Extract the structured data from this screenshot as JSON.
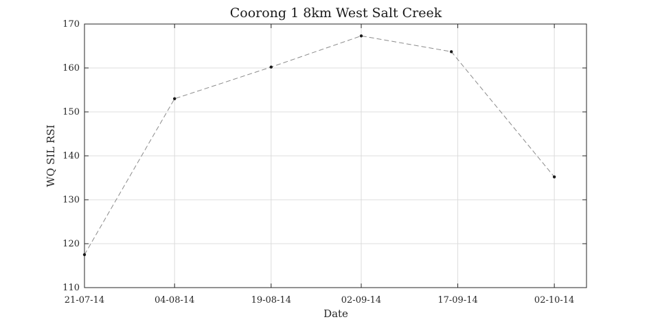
{
  "chart_data": {
    "type": "line",
    "title": "Coorong 1 8km West Salt Creek",
    "xlabel": "Date",
    "ylabel": "WQ SIL RSI",
    "xlim": [
      "2014-07-21",
      "2014-10-07"
    ],
    "ylim": [
      110,
      170
    ],
    "x_ticks": [
      "21-07-14",
      "04-08-14",
      "19-08-14",
      "02-09-14",
      "17-09-14",
      "02-10-14"
    ],
    "x_tick_dates": [
      "2014-07-21",
      "2014-08-04",
      "2014-08-19",
      "2014-09-02",
      "2014-09-17",
      "2014-10-02"
    ],
    "y_ticks": [
      110,
      120,
      130,
      140,
      150,
      160,
      170
    ],
    "grid": true,
    "series": [
      {
        "x": [
          "2014-07-21",
          "2014-08-04",
          "2014-08-19",
          "2014-09-02",
          "2014-09-16",
          "2014-10-02"
        ],
        "y": [
          117.5,
          153.0,
          160.2,
          167.3,
          163.7,
          135.2
        ],
        "color": "#8a8a8a",
        "marker_color": "#1a1a1a",
        "line_style": "dashed"
      }
    ]
  }
}
